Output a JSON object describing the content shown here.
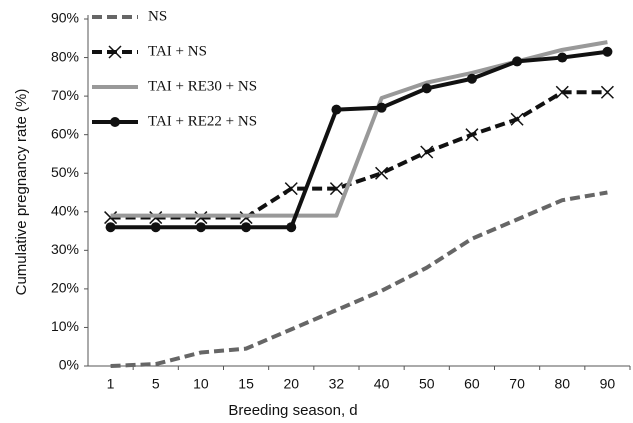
{
  "chart_data": {
    "type": "line",
    "x_label": "Breeding season, d",
    "y_label": "Cumulative pregnancy rate (%)",
    "categories": [
      "1",
      "5",
      "10",
      "15",
      "20",
      "32",
      "40",
      "50",
      "60",
      "70",
      "80",
      "90"
    ],
    "ylim": [
      0,
      90
    ],
    "yticks": [
      {
        "value": 0,
        "label": "0%"
      },
      {
        "value": 10,
        "label": "10%"
      },
      {
        "value": 20,
        "label": "20%"
      },
      {
        "value": 30,
        "label": "30%"
      },
      {
        "value": 40,
        "label": "40%"
      },
      {
        "value": 50,
        "label": "50%"
      },
      {
        "value": 60,
        "label": "60%"
      },
      {
        "value": 70,
        "label": "70%"
      },
      {
        "value": 80,
        "label": "80%"
      },
      {
        "value": 90,
        "label": "90%"
      }
    ],
    "grid": false,
    "legend": "top-left",
    "series": [
      {
        "name": "NS",
        "color": "#666666",
        "dash": true,
        "marker": "none",
        "values": [
          0,
          0.5,
          3.5,
          4.5,
          9.5,
          14.5,
          19.5,
          25.5,
          33,
          38,
          43,
          45
        ]
      },
      {
        "name": "TAI + NS",
        "color": "#111111",
        "dash": true,
        "marker": "x",
        "values": [
          38.5,
          38.5,
          38.5,
          38.5,
          46,
          46,
          50,
          55.5,
          60,
          64,
          71,
          71
        ]
      },
      {
        "name": "TAI + RE30 + NS",
        "color": "#999999",
        "dash": false,
        "marker": "none",
        "values": [
          39,
          39,
          39,
          39,
          39,
          39,
          69.5,
          73.5,
          76,
          79,
          82,
          84
        ]
      },
      {
        "name": "TAI + RE22 + NS",
        "color": "#111111",
        "dash": false,
        "marker": "circle",
        "values": [
          36,
          36,
          36,
          36,
          36,
          66.5,
          67,
          72,
          74.5,
          79,
          80,
          81.5
        ]
      }
    ]
  }
}
